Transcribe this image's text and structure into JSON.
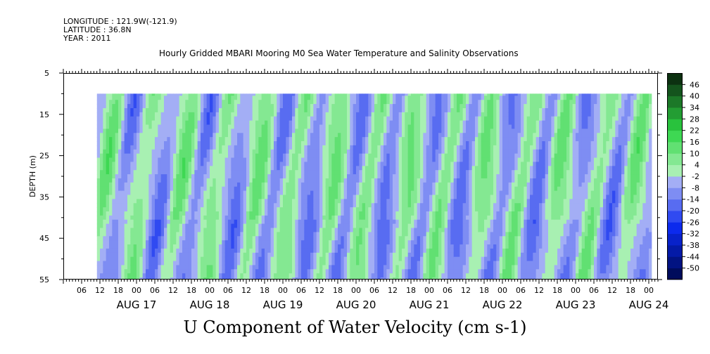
{
  "header": {
    "longitude": "LONGITUDE : 121.9W(-121.9)",
    "latitude": "LATITUDE : 36.8N",
    "year": "YEAR : 2011"
  },
  "chart_data": {
    "type": "heatmap",
    "title": "Hourly Gridded MBARI Mooring M0 Sea Water Temperature and Salinity Observations",
    "footer_label": "U Component of Water Velocity (cm s-1)",
    "ylabel": "DEPTH (m)",
    "y_range": [
      5,
      55
    ],
    "y_inverted": true,
    "y_ticks": [
      5,
      15,
      25,
      35,
      45,
      55
    ],
    "data_depth_range": [
      10,
      55
    ],
    "x_range": [
      "2011-08-16T00:00",
      "2011-08-24T03:00"
    ],
    "data_time_range": [
      "2011-08-16T11:00",
      "2011-08-24T01:00"
    ],
    "x_hour_ticks": [
      "06",
      "12",
      "18",
      "00",
      "06",
      "12",
      "18",
      "00",
      "06",
      "12",
      "18",
      "00",
      "06",
      "12",
      "18",
      "00",
      "06",
      "12",
      "18",
      "00",
      "06",
      "12",
      "18",
      "00",
      "06",
      "12",
      "18",
      "00",
      "06",
      "12",
      "18",
      "00"
    ],
    "x_day_labels": [
      "AUG 17",
      "AUG 18",
      "AUG 19",
      "AUG 20",
      "AUG 21",
      "AUG 22",
      "AUG 23",
      "AUG 24"
    ],
    "colorbar_levels": [
      -50,
      -44,
      -38,
      -32,
      -26,
      -20,
      -14,
      -8,
      -2,
      4,
      10,
      16,
      22,
      28,
      34,
      40,
      46
    ],
    "colorbar_colors": {
      "low": "#000080",
      "mid_negative": "#7b85ee",
      "near_zero_negative": "#a9b4f2",
      "near_zero_positive": "#a8f3ae",
      "mid_positive": "#2fc54a",
      "high": "#004010"
    },
    "dominant_range": [
      -26,
      22
    ],
    "pattern": "alternating positive (green) and negative (blue) vertical bands with roughly semidiurnal period"
  }
}
